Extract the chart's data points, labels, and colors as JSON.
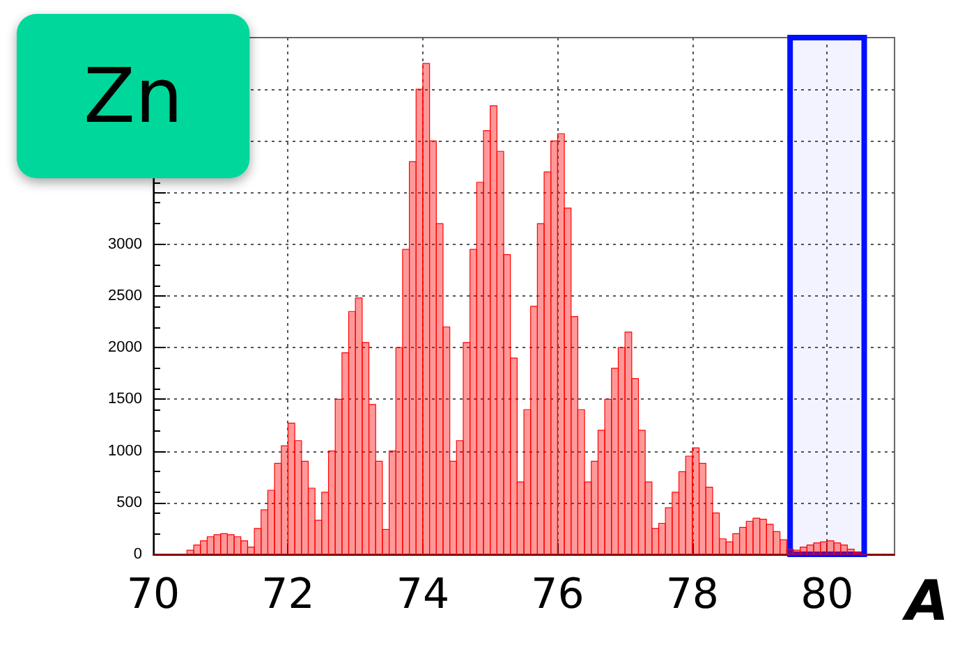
{
  "chart_data": {
    "type": "histogram",
    "title": "Zn",
    "xlabel": "A",
    "bins": [
      70.0,
      70.1,
      70.2,
      70.3,
      70.4,
      70.5,
      70.6,
      70.7,
      70.8,
      70.9,
      71.0,
      71.1,
      71.2,
      71.3,
      71.4,
      71.5,
      71.6,
      71.7,
      71.8,
      71.9,
      72.0,
      72.1,
      72.2,
      72.3,
      72.4,
      72.5,
      72.6,
      72.7,
      72.8,
      72.9,
      73.0,
      73.1,
      73.2,
      73.3,
      73.4,
      73.5,
      73.6,
      73.7,
      73.8,
      73.9,
      74.0,
      74.1,
      74.2,
      74.3,
      74.4,
      74.5,
      74.6,
      74.7,
      74.8,
      74.9,
      75.0,
      75.1,
      75.2,
      75.3,
      75.4,
      75.5,
      75.6,
      75.7,
      75.8,
      75.9,
      76.0,
      76.1,
      76.2,
      76.3,
      76.4,
      76.5,
      76.6,
      76.7,
      76.8,
      76.9,
      77.0,
      77.1,
      77.2,
      77.3,
      77.4,
      77.5,
      77.6,
      77.7,
      77.8,
      77.9,
      78.0,
      78.1,
      78.2,
      78.3,
      78.4,
      78.5,
      78.6,
      78.7,
      78.8,
      78.9,
      79.0,
      79.1,
      79.2,
      79.3,
      79.4,
      79.5,
      79.6,
      79.7,
      79.8,
      79.9,
      80.0,
      80.1,
      80.2,
      80.3,
      80.4,
      80.5,
      80.6,
      80.7,
      80.8,
      80.9,
      81.0
    ],
    "values": [
      0,
      0,
      0,
      0,
      0,
      40,
      90,
      130,
      170,
      190,
      200,
      190,
      170,
      130,
      70,
      250,
      430,
      620,
      880,
      1050,
      1270,
      1100,
      900,
      640,
      330,
      600,
      1000,
      1500,
      1950,
      2350,
      2480,
      2050,
      1450,
      900,
      240,
      1000,
      2000,
      2950,
      3800,
      4500,
      4750,
      4000,
      3200,
      2200,
      900,
      1100,
      2050,
      2950,
      3600,
      4100,
      4340,
      3900,
      2900,
      1900,
      700,
      1400,
      2400,
      3200,
      3700,
      4000,
      4070,
      3350,
      2300,
      1400,
      700,
      900,
      1200,
      1500,
      1800,
      2000,
      2150,
      1700,
      1200,
      700,
      250,
      300,
      450,
      600,
      800,
      950,
      1030,
      880,
      650,
      400,
      150,
      120,
      200,
      260,
      320,
      350,
      340,
      290,
      220,
      140,
      50,
      40,
      70,
      90,
      110,
      120,
      130,
      110,
      90,
      50,
      20,
      0,
      0,
      0,
      0,
      0
    ],
    "color": "#ff0000",
    "xlim": [
      70,
      81
    ],
    "xticks": [
      70,
      72,
      74,
      76,
      78,
      80
    ],
    "ylim": [
      0,
      5000
    ],
    "yticks": [
      0,
      500,
      1000,
      1500,
      2000,
      2500,
      3000,
      {
        "value": 3500,
        "label": null
      },
      {
        "value": 4000,
        "label": null
      },
      {
        "value": 4500,
        "label": null
      }
    ],
    "bands": [
      {
        "axis": "x",
        "from": 79.45,
        "to": 80.55,
        "color": "#0010ff"
      }
    ],
    "grid": true
  }
}
